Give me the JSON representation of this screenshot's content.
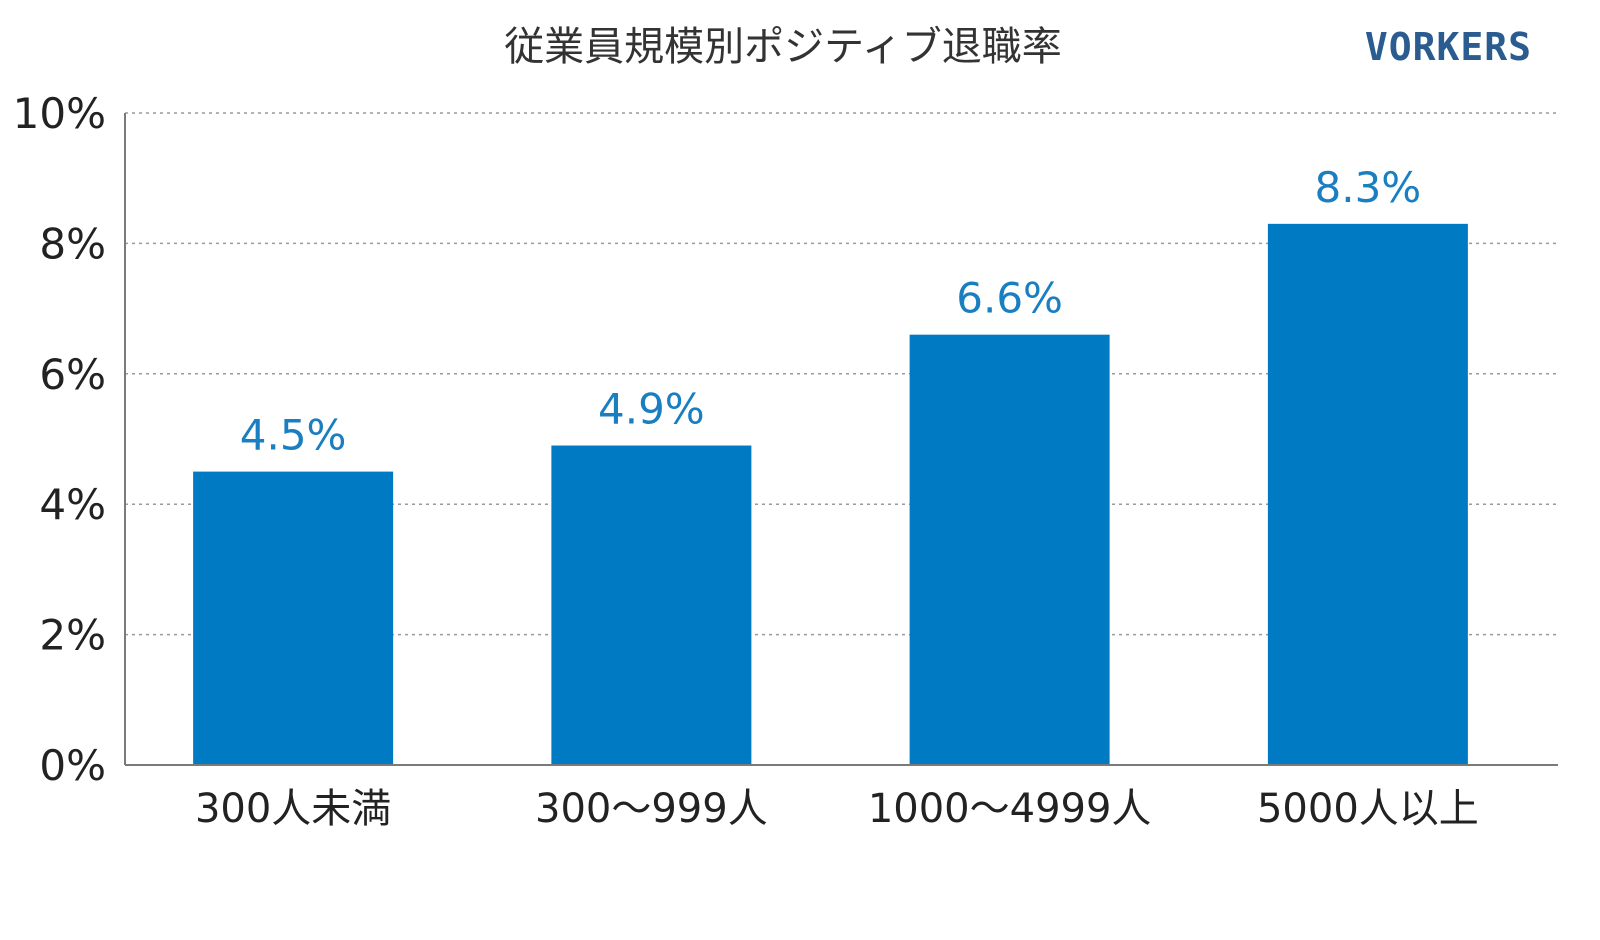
{
  "chart_data": {
    "type": "bar",
    "title": "従業員規模別ポジティブ退職率",
    "categories": [
      "300人未満",
      "300〜999人",
      "1000〜4999人",
      "5000人以上"
    ],
    "values": [
      4.5,
      4.9,
      6.6,
      8.3
    ],
    "data_labels": [
      "4.5%",
      "4.9%",
      "6.6%",
      "8.3%"
    ],
    "ylim": [
      0,
      10
    ],
    "yticks": [
      0,
      2,
      4,
      6,
      8,
      10
    ],
    "ytick_labels": [
      "0%",
      "2%",
      "4%",
      "6%",
      "8%",
      "10%"
    ],
    "xlabel": "",
    "ylabel": "",
    "grid": true,
    "grid_style": "dotted horizontal",
    "legend": "none",
    "bar_color": "#007bc3",
    "data_label_color": "#1a7fc1"
  },
  "brand": {
    "logo_text": "VORKERS",
    "color": "#2a5c8f"
  }
}
